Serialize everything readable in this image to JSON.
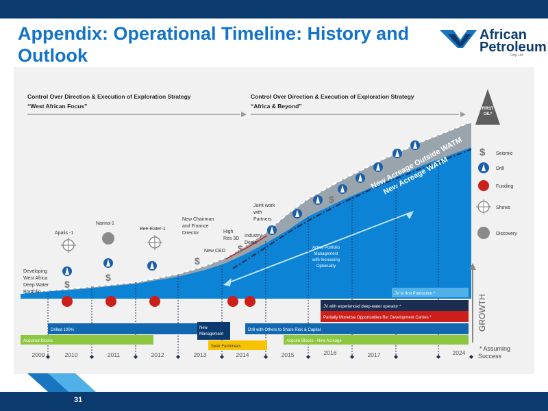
{
  "title": "Appendix: Operational Timeline: History and Outlook",
  "logo": {
    "line1": "African",
    "line2": "Petroleum",
    "sub": "Corp Ltd"
  },
  "page_number": "31",
  "strategy": {
    "left": {
      "line1": "Control Over Direction & Execution of Exploration Strategy",
      "line2": "“West African Focus”"
    },
    "right": {
      "line1": "Control Over Direction & Execution of Exploration Strategy",
      "line2": "“Africa & Beyond”"
    }
  },
  "first_oil": {
    "line1": "FIRST",
    "line2": "OIL*"
  },
  "acreage": {
    "outside": "New Acreage Outside WATM",
    "watm": "New Acreage WATM"
  },
  "legend": [
    {
      "icon": "seismic",
      "label": "Seismic"
    },
    {
      "icon": "drill",
      "label": "Drill"
    },
    {
      "icon": "funding",
      "label": "Funding"
    },
    {
      "icon": "shows",
      "label": "Shows"
    },
    {
      "icon": "discovery",
      "label": "Discovery"
    }
  ],
  "milestones": {
    "developing": [
      "Developing",
      "West Africa",
      "Deep Water",
      "Portfolio"
    ],
    "apalis": "Apalis -1",
    "narina": "Narina-1",
    "beeeater": "Bee-Eater-1",
    "chairman": [
      "New Chairman",
      "and Finance",
      "Director"
    ],
    "newceo": "New CEO",
    "highres": [
      "High",
      "Res 3D"
    ],
    "industry": [
      "Industry",
      "Deals"
    ],
    "jointwork": [
      "Joint work",
      "with",
      "Partners"
    ],
    "active": [
      "Active Portfolio",
      "Management",
      "with Increasing",
      "Optionality"
    ]
  },
  "bars": {
    "jv_first": "JV to first Production *",
    "jv_experienced": "JV with experienced deep-water operator *",
    "partially": "Partially Monetise Opportunities Re: Development Carries *",
    "drilled": "Drilled 100%",
    "new_mgmt": [
      "New",
      "Management"
    ],
    "drill_others": "Drill with Others to Share Risk & Capital",
    "acquired": "Acquired Blocks",
    "acquire_new": "Acquire Blocks - New Acreage",
    "seek": "Seek Farminees"
  },
  "growth": "GROWTH",
  "assuming": [
    "* Assuming",
    "Success"
  ],
  "years": [
    "2009",
    "2010",
    "2011",
    "2012",
    "2013",
    "2014",
    "2015",
    "2016",
    "2017",
    "2024"
  ],
  "colors": {
    "title": "#1273c8",
    "navy": "#0b3a6e",
    "area": "#0d83d6",
    "funding": "#cc1f1a",
    "green": "#8dc63f",
    "yellow": "#f7c300",
    "sky": "#4fb1e8"
  }
}
